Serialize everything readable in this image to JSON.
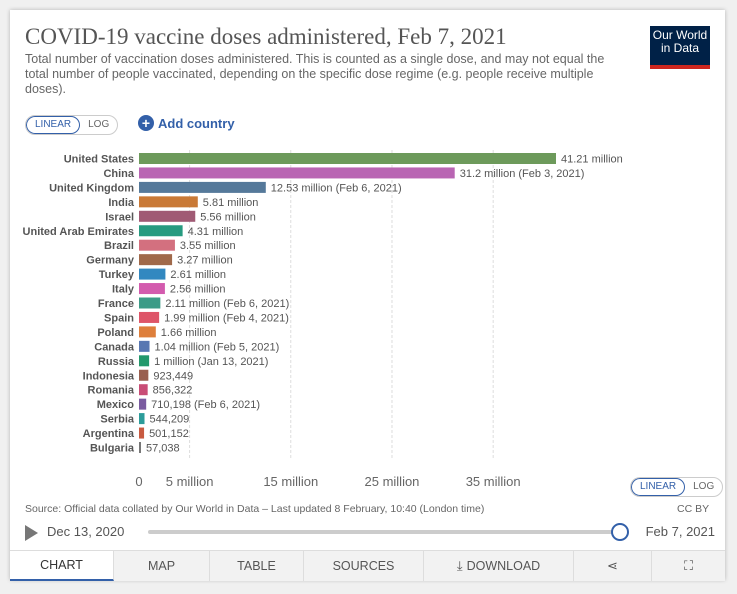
{
  "header": {
    "title": "COVID-19 vaccine doses administered, Feb 7, 2021",
    "subtitle": "Total number of vaccination doses administered. This is counted as a single dose, and may not equal the total number of people vaccinated, depending on the specific dose regime (e.g. people receive multiple doses).",
    "logo_line1": "Our World",
    "logo_line2": "in Data"
  },
  "scale_toggle": {
    "linear": "LINEAR",
    "log": "LOG"
  },
  "add_country_label": "Add country",
  "chart_data": {
    "type": "bar",
    "orientation": "horizontal",
    "title": "COVID-19 vaccine doses administered, Feb 7, 2021",
    "categories": [
      "United States",
      "China",
      "United Kingdom",
      "India",
      "Israel",
      "United Arab Emirates",
      "Brazil",
      "Germany",
      "Turkey",
      "Italy",
      "France",
      "Spain",
      "Poland",
      "Canada",
      "Russia",
      "Indonesia",
      "Romania",
      "Mexico",
      "Serbia",
      "Argentina",
      "Bulgaria"
    ],
    "values": [
      41210000,
      31200000,
      12530000,
      5810000,
      5560000,
      4310000,
      3550000,
      3270000,
      2610000,
      2560000,
      2110000,
      1990000,
      1660000,
      1040000,
      1000000,
      923449,
      856322,
      710198,
      544209,
      501152,
      57038
    ],
    "value_labels": [
      "41.21 million",
      "31.2 million (Feb 3, 2021)",
      "12.53 million (Feb 6, 2021)",
      "5.81 million",
      "5.56 million",
      "4.31 million",
      "3.55 million",
      "3.27 million",
      "2.61 million",
      "2.56 million",
      "2.11 million (Feb 6, 2021)",
      "1.99 million (Feb 4, 2021)",
      "1.66 million",
      "1.04 million (Feb 5, 2021)",
      "1 million (Jan 13, 2021)",
      "923,449",
      "856,322",
      "710,198 (Feb 6, 2021)",
      "544,209",
      "501,152",
      "57,038"
    ],
    "colors": [
      "#6d9a5b",
      "#b965b3",
      "#55799a",
      "#c97936",
      "#a05a74",
      "#279b80",
      "#d3707f",
      "#a0694a",
      "#3288c0",
      "#d35bae",
      "#3c9b87",
      "#de5568",
      "#de7f3b",
      "#5877b2",
      "#23986b",
      "#995f4f",
      "#c94d76",
      "#7a5ba0",
      "#2c9c9a",
      "#c85a40",
      "#777777"
    ],
    "x_ticks": [
      0,
      5000000,
      15000000,
      25000000,
      35000000
    ],
    "x_tick_labels": [
      "0",
      "5 million",
      "15 million",
      "25 million",
      "35 million"
    ],
    "xlim": [
      0,
      41210000
    ],
    "grid": true
  },
  "source_text": "Source: Official data collated by Our World in Data – Last updated 8 February, 10:40 (London time)",
  "timeline": {
    "start": "Dec 13, 2020",
    "end": "Feb 7, 2021"
  },
  "tabs": [
    {
      "label": "CHART"
    },
    {
      "label": "MAP"
    },
    {
      "label": "TABLE"
    },
    {
      "label": "SOURCES"
    },
    {
      "label": "DOWNLOAD"
    }
  ],
  "license": "CC BY",
  "icons": {
    "download": "download-icon",
    "share": "share-icon",
    "fullscreen": "fullscreen-icon",
    "play": "play-icon",
    "add": "plus-circle-icon"
  }
}
